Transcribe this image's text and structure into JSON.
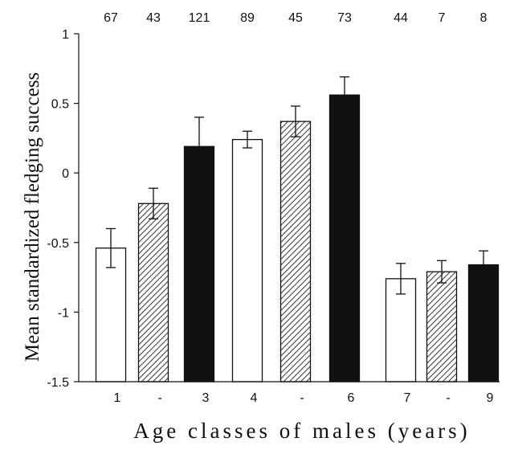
{
  "chart_data": {
    "type": "bar",
    "ylabel": "Mean standardized fledging success",
    "xlabel": "Age classes of males (years)",
    "ylim": [
      -1.5,
      1
    ],
    "yticks": [
      1,
      0.5,
      0,
      -0.5,
      -1,
      -1.5
    ],
    "ytick_labels": [
      "1",
      "0.5",
      "0",
      "-0.5",
      "-1",
      "-1.5"
    ],
    "grid": false,
    "categories": [
      "1",
      "-",
      "3",
      "4",
      "-",
      "6",
      "7",
      "-",
      "9"
    ],
    "values": [
      -0.54,
      -0.22,
      0.19,
      0.24,
      0.37,
      0.56,
      -0.76,
      -0.71,
      -0.66
    ],
    "errors": [
      0.14,
      0.11,
      0.21,
      0.06,
      0.11,
      0.13,
      0.11,
      0.08,
      0.1
    ],
    "sample_sizes": [
      "67",
      "43",
      "121",
      "89",
      "45",
      "73",
      "44",
      "7",
      "8"
    ],
    "fills": [
      "white",
      "hatched",
      "black",
      "white",
      "hatched",
      "black",
      "white",
      "hatched",
      "black"
    ],
    "colors": {
      "black": "#111111",
      "white": "#ffffff",
      "hatch": "#333333"
    }
  }
}
